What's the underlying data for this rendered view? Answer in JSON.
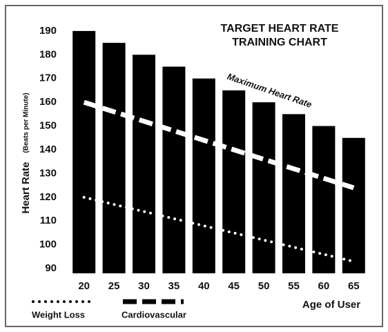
{
  "chart_data": {
    "type": "bar",
    "title": [
      "TARGET HEART RATE",
      "TRAINING CHART"
    ],
    "y_label": "Heart Rate",
    "y_label_note": "(Beats per Minute)",
    "x_label": "Age of User",
    "annotation": "Maximum Heart Rate",
    "categories": [
      "20",
      "25",
      "30",
      "35",
      "40",
      "45",
      "50",
      "55",
      "60",
      "65"
    ],
    "values": [
      190,
      185,
      180,
      175,
      170,
      165,
      160,
      155,
      150,
      145
    ],
    "color": "#000000",
    "series": [
      {
        "name": "Weight Loss",
        "color": "#ffffff",
        "style": "dotted",
        "values": [
          120,
          117,
          114,
          111,
          108,
          105,
          102,
          99,
          96,
          93
        ]
      },
      {
        "name": "Cardiovascular",
        "color": "#ffffff",
        "style": "dashed",
        "values": [
          160,
          156,
          152,
          148,
          144,
          140,
          136,
          132,
          128,
          124
        ]
      }
    ],
    "ylim": [
      88,
      192
    ],
    "yticks": [
      90,
      100,
      110,
      120,
      130,
      140,
      150,
      160,
      170,
      180,
      190
    ]
  }
}
